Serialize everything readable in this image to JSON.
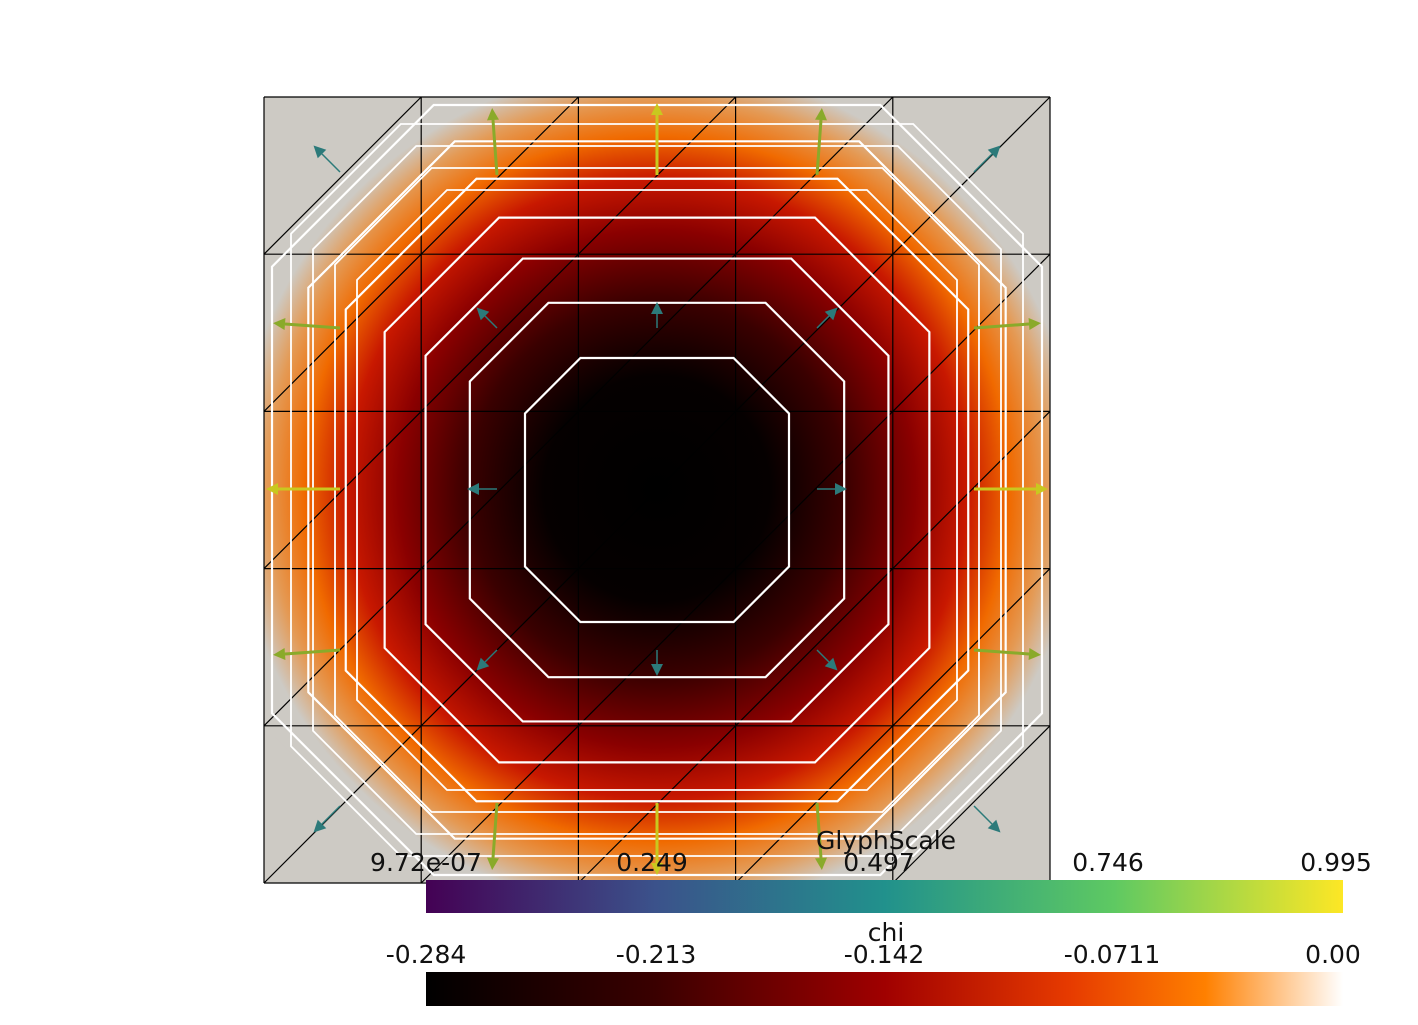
{
  "scene": {
    "grid_divisions": 5,
    "contour_levels": 7,
    "fill_color": "#cdcac4",
    "mesh_line_color": "#000000",
    "contour_color": "#ffffff"
  },
  "legends": {
    "glyph_scale": {
      "title": "GlyphScale",
      "tick_labels": [
        "9.72e-07",
        "0.249",
        "0.497",
        "0.746",
        "0.995"
      ],
      "range": [
        9.72e-07,
        0.995
      ],
      "colormap": "viridis",
      "colors": [
        "#440154",
        "#3b528b",
        "#21918c",
        "#5ec962",
        "#fde725"
      ]
    },
    "chi": {
      "title": "chi",
      "tick_labels": [
        "-0.284",
        "-0.213",
        "-0.142",
        "-0.0711",
        "0.00"
      ],
      "range": [
        -0.284,
        0.0
      ],
      "colormap": "heat",
      "colors": [
        "#000000",
        "#3a0000",
        "#a00000",
        "#e63a00",
        "#ff8000",
        "#ffffff"
      ]
    }
  }
}
